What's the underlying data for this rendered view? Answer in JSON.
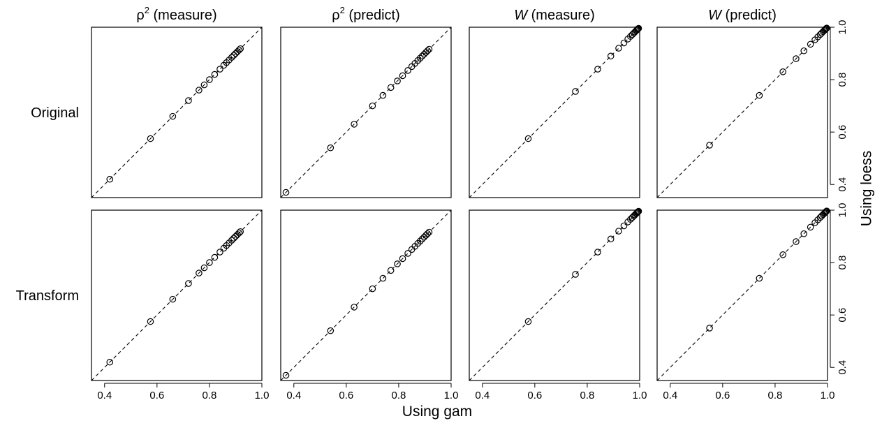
{
  "chart_data": {
    "type": "scatter",
    "xlabel": "Using gam",
    "ylabel": "Using loess",
    "xlim": [
      0.35,
      1.0
    ],
    "ylim": [
      0.35,
      1.0
    ],
    "x_ticks": [
      "0.4",
      "0.6",
      "0.8",
      "1.0"
    ],
    "y_ticks": [
      "0.4",
      "0.6",
      "0.8",
      "1.0"
    ],
    "reference_line": "y = x (dashed)",
    "grid": false,
    "columns": [
      {
        "prefix": "ρ",
        "sup": "2",
        "suffix": " (measure)"
      },
      {
        "prefix": "ρ",
        "sup": "2",
        "suffix": " (predict)"
      },
      {
        "prefix": "W",
        "sup": "",
        "suffix": " (measure)"
      },
      {
        "prefix": "W",
        "sup": "",
        "suffix": " (predict)"
      }
    ],
    "rows": [
      "Original",
      "Transform"
    ],
    "panels": [
      {
        "row": 0,
        "col": 0,
        "points": [
          [
            0.42,
            0.42
          ],
          [
            0.575,
            0.575
          ],
          [
            0.66,
            0.66
          ],
          [
            0.72,
            0.72
          ],
          [
            0.76,
            0.76
          ],
          [
            0.78,
            0.78
          ],
          [
            0.8,
            0.8
          ],
          [
            0.82,
            0.82
          ],
          [
            0.84,
            0.84
          ],
          [
            0.855,
            0.855
          ],
          [
            0.865,
            0.865
          ],
          [
            0.875,
            0.875
          ],
          [
            0.885,
            0.885
          ],
          [
            0.893,
            0.893
          ],
          [
            0.9,
            0.9
          ],
          [
            0.907,
            0.907
          ],
          [
            0.913,
            0.913
          ],
          [
            0.918,
            0.918
          ]
        ]
      },
      {
        "row": 0,
        "col": 1,
        "points": [
          [
            0.37,
            0.37
          ],
          [
            0.54,
            0.54
          ],
          [
            0.63,
            0.63
          ],
          [
            0.7,
            0.7
          ],
          [
            0.74,
            0.74
          ],
          [
            0.77,
            0.77
          ],
          [
            0.795,
            0.795
          ],
          [
            0.815,
            0.815
          ],
          [
            0.835,
            0.835
          ],
          [
            0.85,
            0.85
          ],
          [
            0.862,
            0.862
          ],
          [
            0.873,
            0.873
          ],
          [
            0.882,
            0.882
          ],
          [
            0.89,
            0.89
          ],
          [
            0.897,
            0.897
          ],
          [
            0.904,
            0.904
          ],
          [
            0.91,
            0.91
          ],
          [
            0.916,
            0.916
          ]
        ]
      },
      {
        "row": 0,
        "col": 2,
        "points": [
          [
            0.575,
            0.575
          ],
          [
            0.755,
            0.755
          ],
          [
            0.84,
            0.84
          ],
          [
            0.89,
            0.89
          ],
          [
            0.92,
            0.92
          ],
          [
            0.94,
            0.94
          ],
          [
            0.955,
            0.955
          ],
          [
            0.965,
            0.965
          ],
          [
            0.972,
            0.972
          ],
          [
            0.978,
            0.978
          ],
          [
            0.982,
            0.982
          ],
          [
            0.986,
            0.986
          ],
          [
            0.989,
            0.989
          ],
          [
            0.992,
            0.992
          ],
          [
            0.994,
            0.994
          ],
          [
            0.996,
            0.996
          ]
        ]
      },
      {
        "row": 0,
        "col": 3,
        "points": [
          [
            0.55,
            0.55
          ],
          [
            0.74,
            0.74
          ],
          [
            0.83,
            0.83
          ],
          [
            0.88,
            0.88
          ],
          [
            0.91,
            0.91
          ],
          [
            0.935,
            0.935
          ],
          [
            0.952,
            0.952
          ],
          [
            0.963,
            0.963
          ],
          [
            0.972,
            0.972
          ],
          [
            0.978,
            0.978
          ],
          [
            0.983,
            0.983
          ],
          [
            0.987,
            0.987
          ],
          [
            0.99,
            0.99
          ],
          [
            0.993,
            0.993
          ],
          [
            0.995,
            0.995
          ],
          [
            0.997,
            0.997
          ]
        ]
      },
      {
        "row": 1,
        "col": 0,
        "points": [
          [
            0.42,
            0.42
          ],
          [
            0.575,
            0.575
          ],
          [
            0.66,
            0.66
          ],
          [
            0.72,
            0.72
          ],
          [
            0.76,
            0.76
          ],
          [
            0.78,
            0.78
          ],
          [
            0.8,
            0.8
          ],
          [
            0.82,
            0.82
          ],
          [
            0.84,
            0.84
          ],
          [
            0.855,
            0.855
          ],
          [
            0.865,
            0.865
          ],
          [
            0.875,
            0.875
          ],
          [
            0.885,
            0.885
          ],
          [
            0.893,
            0.893
          ],
          [
            0.9,
            0.9
          ],
          [
            0.907,
            0.907
          ],
          [
            0.913,
            0.913
          ],
          [
            0.918,
            0.918
          ]
        ]
      },
      {
        "row": 1,
        "col": 1,
        "points": [
          [
            0.37,
            0.37
          ],
          [
            0.54,
            0.54
          ],
          [
            0.63,
            0.63
          ],
          [
            0.7,
            0.7
          ],
          [
            0.74,
            0.74
          ],
          [
            0.77,
            0.77
          ],
          [
            0.795,
            0.795
          ],
          [
            0.815,
            0.815
          ],
          [
            0.835,
            0.835
          ],
          [
            0.85,
            0.85
          ],
          [
            0.862,
            0.862
          ],
          [
            0.873,
            0.873
          ],
          [
            0.882,
            0.882
          ],
          [
            0.89,
            0.89
          ],
          [
            0.897,
            0.897
          ],
          [
            0.904,
            0.904
          ],
          [
            0.91,
            0.91
          ],
          [
            0.916,
            0.916
          ]
        ]
      },
      {
        "row": 1,
        "col": 2,
        "points": [
          [
            0.575,
            0.575
          ],
          [
            0.755,
            0.755
          ],
          [
            0.84,
            0.84
          ],
          [
            0.89,
            0.89
          ],
          [
            0.92,
            0.92
          ],
          [
            0.94,
            0.94
          ],
          [
            0.955,
            0.955
          ],
          [
            0.965,
            0.965
          ],
          [
            0.972,
            0.972
          ],
          [
            0.978,
            0.978
          ],
          [
            0.982,
            0.982
          ],
          [
            0.986,
            0.986
          ],
          [
            0.989,
            0.989
          ],
          [
            0.992,
            0.992
          ],
          [
            0.994,
            0.994
          ],
          [
            0.996,
            0.996
          ]
        ]
      },
      {
        "row": 1,
        "col": 3,
        "points": [
          [
            0.55,
            0.55
          ],
          [
            0.74,
            0.74
          ],
          [
            0.83,
            0.83
          ],
          [
            0.88,
            0.88
          ],
          [
            0.91,
            0.91
          ],
          [
            0.935,
            0.935
          ],
          [
            0.952,
            0.952
          ],
          [
            0.963,
            0.963
          ],
          [
            0.972,
            0.972
          ],
          [
            0.978,
            0.978
          ],
          [
            0.983,
            0.983
          ],
          [
            0.987,
            0.987
          ],
          [
            0.99,
            0.99
          ],
          [
            0.993,
            0.993
          ],
          [
            0.995,
            0.995
          ],
          [
            0.997,
            0.997
          ]
        ]
      }
    ]
  }
}
